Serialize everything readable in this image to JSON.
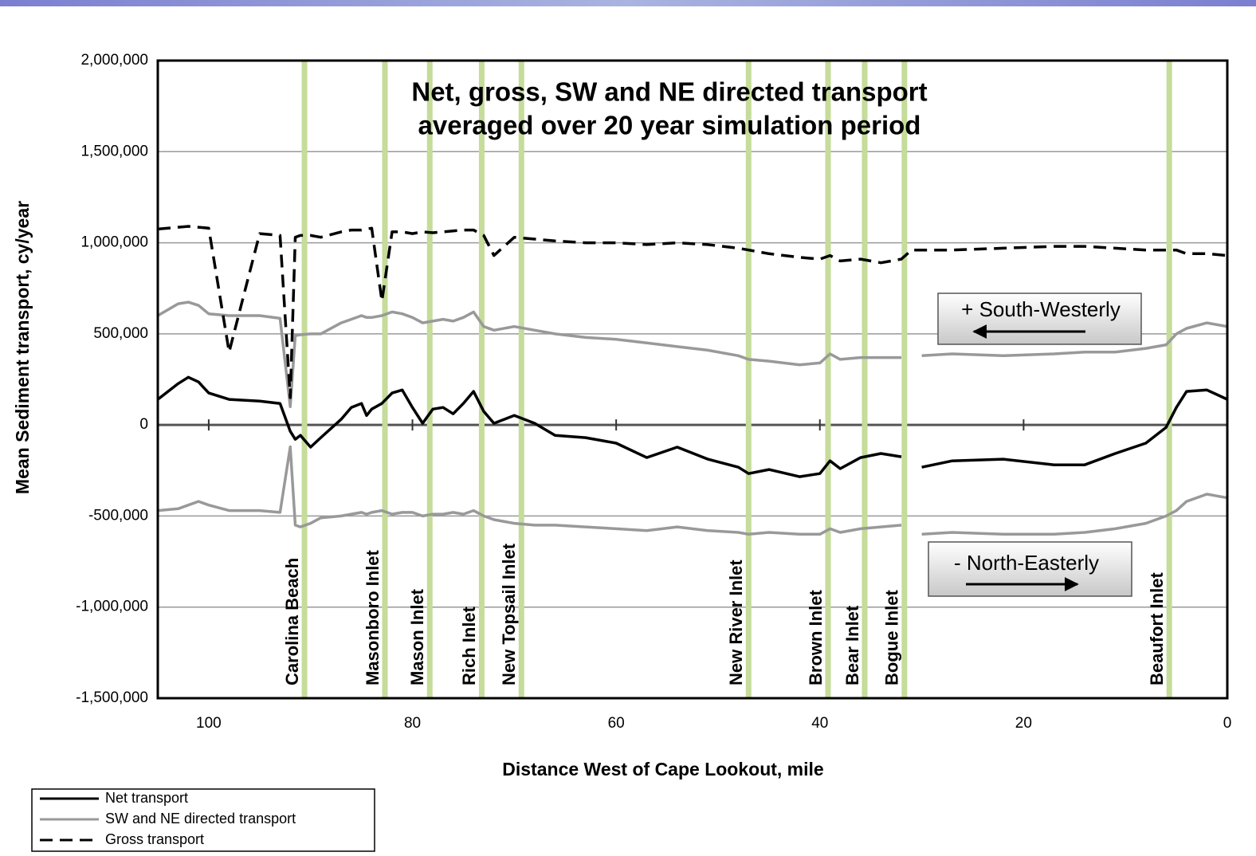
{
  "chart_data": {
    "type": "line",
    "title": [
      "Net, gross, SW and NE directed transport",
      "averaged over 20 year simulation period"
    ],
    "xlabel": "Distance West of Cape Lookout, mile",
    "ylabel": "Mean Sediment transport, cy/year",
    "xlim": [
      105,
      0
    ],
    "xticks": [
      100,
      80,
      60,
      40,
      20,
      0
    ],
    "ylim": [
      -1500000,
      2000000
    ],
    "yticks": [
      {
        "value": -1500000,
        "label": "-1,500,000"
      },
      {
        "value": -1000000,
        "label": "-1,000,000"
      },
      {
        "value": -500000,
        "label": "-500,000"
      },
      0,
      {
        "value": 500000,
        "label": "500,000"
      },
      {
        "value": 1000000,
        "label": "1,000,000"
      },
      {
        "value": 1500000,
        "label": "1,500,000"
      },
      {
        "value": 2000000,
        "label": "2,000,000"
      }
    ],
    "grid": true,
    "legend": "bottom-left",
    "x": [
      105,
      103,
      102,
      101,
      100,
      98,
      95,
      93,
      92,
      91.5,
      91,
      90,
      89,
      87,
      86,
      85,
      84.5,
      84,
      83,
      82,
      81,
      80,
      79,
      78,
      77,
      76,
      75,
      74,
      73,
      72,
      70,
      68,
      66,
      63,
      60,
      57,
      54,
      51,
      48,
      47,
      45,
      42,
      40,
      39,
      38,
      36,
      34,
      32,
      31,
      30,
      27,
      22,
      17,
      14,
      11,
      8,
      6,
      5,
      4,
      2,
      0
    ],
    "series": [
      {
        "name": "Net transport",
        "color": "#000000",
        "dash": false,
        "values": [
          140000,
          227000,
          262000,
          236000,
          175000,
          140000,
          131000,
          118000,
          -35000,
          -79000,
          -57000,
          -122000,
          -70000,
          31000,
          96000,
          118000,
          52000,
          87000,
          118000,
          175000,
          192000,
          96000,
          9000,
          87000,
          96000,
          61000,
          118000,
          184000,
          74000,
          9000,
          52000,
          9000,
          -57000,
          -70000,
          -100000,
          -179000,
          -122000,
          -188000,
          -232000,
          -267000,
          -245000,
          -284000,
          -267000,
          -197000,
          -240000,
          -179000,
          -157000,
          -175000,
          null,
          -232000,
          -197000,
          -188000,
          -219000,
          -219000,
          -157000,
          -100000,
          -13000,
          96000,
          184000,
          192000,
          140000
        ]
      },
      {
        "name": "SW and NE directed transport",
        "color": "#999999",
        "dash": false,
        "values": [
          600000,
          665000,
          674000,
          656000,
          610000,
          600000,
          600000,
          585000,
          100000,
          490000,
          495000,
          500000,
          500000,
          560000,
          580000,
          600000,
          590000,
          590000,
          600000,
          620000,
          610000,
          590000,
          560000,
          570000,
          580000,
          570000,
          590000,
          620000,
          540000,
          520000,
          540000,
          520000,
          500000,
          480000,
          470000,
          450000,
          430000,
          410000,
          380000,
          360000,
          350000,
          330000,
          340000,
          390000,
          360000,
          370000,
          370000,
          370000,
          null,
          380000,
          390000,
          380000,
          390000,
          400000,
          400000,
          420000,
          440000,
          500000,
          530000,
          560000,
          540000
        ],
        "values_ne": [
          -470000,
          -460000,
          -440000,
          -420000,
          -440000,
          -470000,
          -470000,
          -480000,
          -120000,
          -550000,
          -560000,
          -540000,
          -510000,
          -500000,
          -490000,
          -480000,
          -490000,
          -480000,
          -470000,
          -490000,
          -480000,
          -480000,
          -500000,
          -490000,
          -490000,
          -480000,
          -490000,
          -470000,
          -500000,
          -520000,
          -540000,
          -550000,
          -550000,
          -560000,
          -570000,
          -580000,
          -560000,
          -580000,
          -590000,
          -600000,
          -590000,
          -600000,
          -600000,
          -570000,
          -590000,
          -570000,
          -560000,
          -550000,
          null,
          -600000,
          -590000,
          -600000,
          -600000,
          -590000,
          -570000,
          -540000,
          -500000,
          -470000,
          -420000,
          -380000,
          -400000
        ]
      },
      {
        "name": "Gross transport",
        "color": "#000000",
        "dash": true,
        "values": [
          1075000,
          1085000,
          1090000,
          1085000,
          1080000,
          400000,
          1050000,
          1040000,
          150000,
          1030000,
          1040000,
          1040000,
          1030000,
          1060000,
          1070000,
          1070000,
          1075000,
          1080000,
          680000,
          1060000,
          1060000,
          1050000,
          1060000,
          1055000,
          1060000,
          1065000,
          1070000,
          1070000,
          1040000,
          930000,
          1030000,
          1020000,
          1010000,
          1000000,
          1000000,
          990000,
          1000000,
          990000,
          970000,
          960000,
          940000,
          920000,
          910000,
          930000,
          900000,
          910000,
          890000,
          910000,
          960000,
          960000,
          960000,
          970000,
          980000,
          980000,
          970000,
          960000,
          960000,
          960000,
          940000,
          940000,
          930000
        ]
      }
    ],
    "inlets": [
      {
        "label": "Carolina Beach",
        "x": 90.6
      },
      {
        "label": "Masonboro Inlet",
        "x": 82.7
      },
      {
        "label": "Mason Inlet",
        "x": 78.3
      },
      {
        "label": "Rich Inlet",
        "x": 73.2
      },
      {
        "label": "New Topsail Inlet",
        "x": 69.3
      },
      {
        "label": "New River Inlet",
        "x": 47.0
      },
      {
        "label": "Brown Inlet",
        "x": 39.2
      },
      {
        "label": "Bear Inlet",
        "x": 35.6
      },
      {
        "label": "Bogue Inlet",
        "x": 31.7
      },
      {
        "label": "Beaufort Inlet",
        "x": 5.7
      }
    ],
    "inlet_color": "#c5dc9a",
    "direction_boxes": [
      "+ South-Westerly",
      "- North-Easterly"
    ]
  }
}
